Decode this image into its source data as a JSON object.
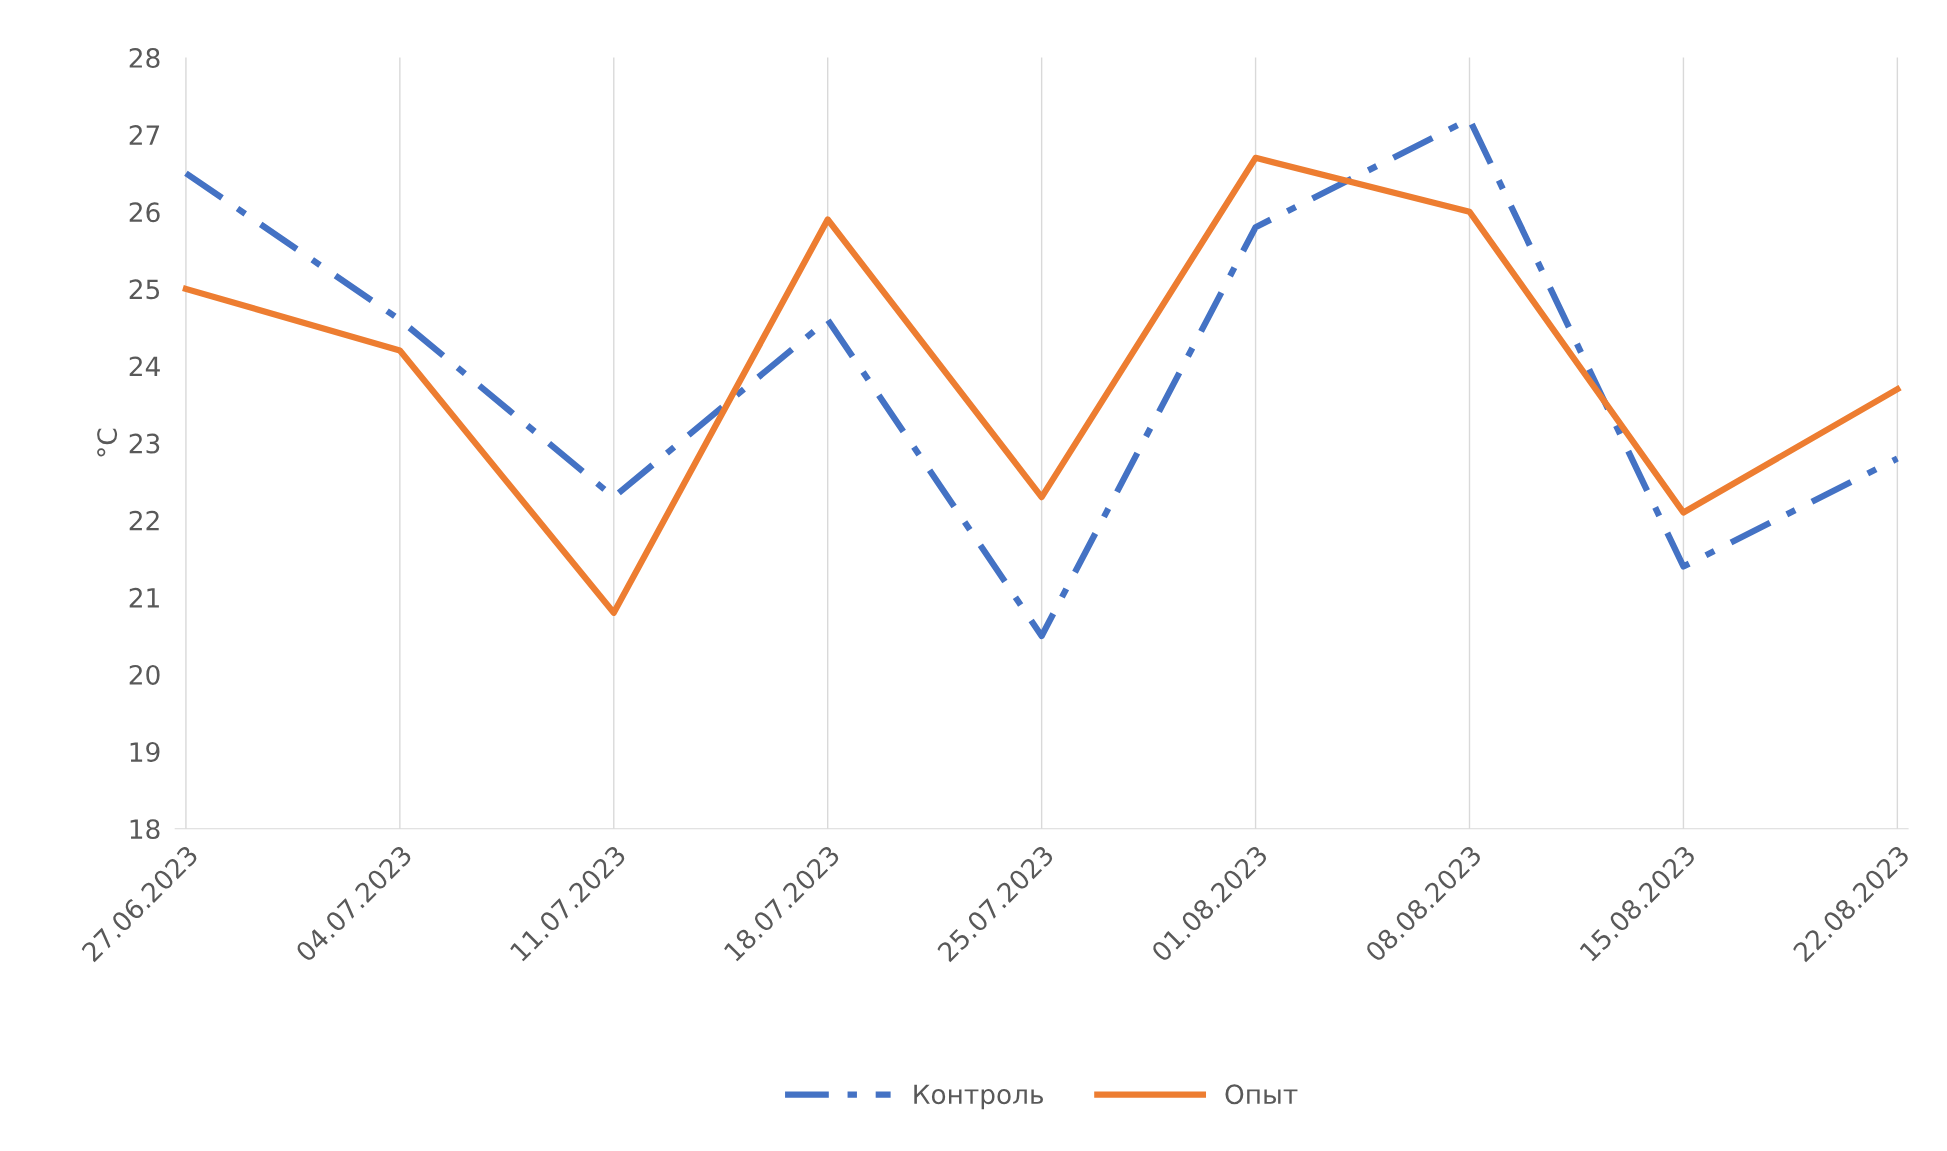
{
  "chart_data": {
    "type": "line",
    "ylabel": "°C",
    "categories": [
      "27.06.2023",
      "04.07.2023",
      "11.07.2023",
      "18.07.2023",
      "25.07.2023",
      "01.08.2023",
      "08.08.2023",
      "15.08.2023",
      "22.08.2023"
    ],
    "series": [
      {
        "name": "Контроль",
        "color": "#4472c4",
        "line_style": "dashdot",
        "values": [
          26.5,
          24.6,
          22.3,
          24.6,
          20.5,
          25.8,
          27.2,
          21.4,
          22.8
        ]
      },
      {
        "name": "Опыт",
        "color": "#ed7d31",
        "line_style": "solid",
        "values": [
          25.0,
          24.2,
          20.8,
          25.9,
          22.3,
          26.7,
          26.0,
          22.1,
          23.7
        ]
      }
    ],
    "ylim": [
      18,
      28
    ],
    "yticks": [
      18,
      19,
      20,
      21,
      22,
      23,
      24,
      25,
      26,
      27,
      28
    ],
    "grid": "x",
    "legend": "bottom",
    "marker": "none"
  }
}
